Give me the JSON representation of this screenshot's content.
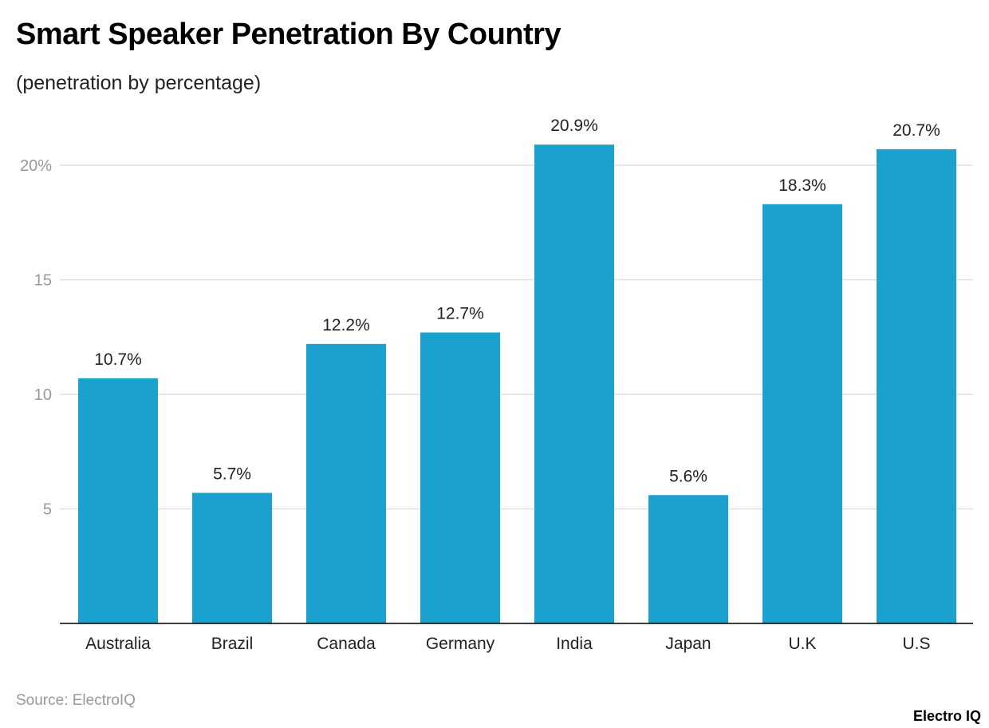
{
  "title": "Smart Speaker Penetration By Country",
  "subtitle": "(penetration by percentage)",
  "source": "Source: ElectroIQ",
  "logo": "Electro IQ",
  "colors": {
    "bar": "#1ba1cd",
    "grid": "#e0e0e0",
    "axis": "#000000",
    "tick_label": "#999999"
  },
  "chart_data": {
    "type": "bar",
    "title": "Smart Speaker Penetration By Country",
    "subtitle": "(penetration by percentage)",
    "categories": [
      "Australia",
      "Brazil",
      "Canada",
      "Germany",
      "India",
      "Japan",
      "U.K",
      "U.S"
    ],
    "values": [
      10.7,
      5.7,
      12.2,
      12.7,
      20.9,
      5.6,
      18.3,
      20.7
    ],
    "data_labels": [
      "10.7%",
      "5.7%",
      "12.2%",
      "12.7%",
      "20.9%",
      "5.6%",
      "18.3%",
      "20.7%"
    ],
    "yticks": [
      5,
      10,
      15,
      20
    ],
    "ytick_labels": [
      "5",
      "10",
      "15",
      "20%"
    ],
    "ylim": [
      0,
      20.9
    ],
    "grid": true,
    "xlabel": "",
    "ylabel": ""
  }
}
